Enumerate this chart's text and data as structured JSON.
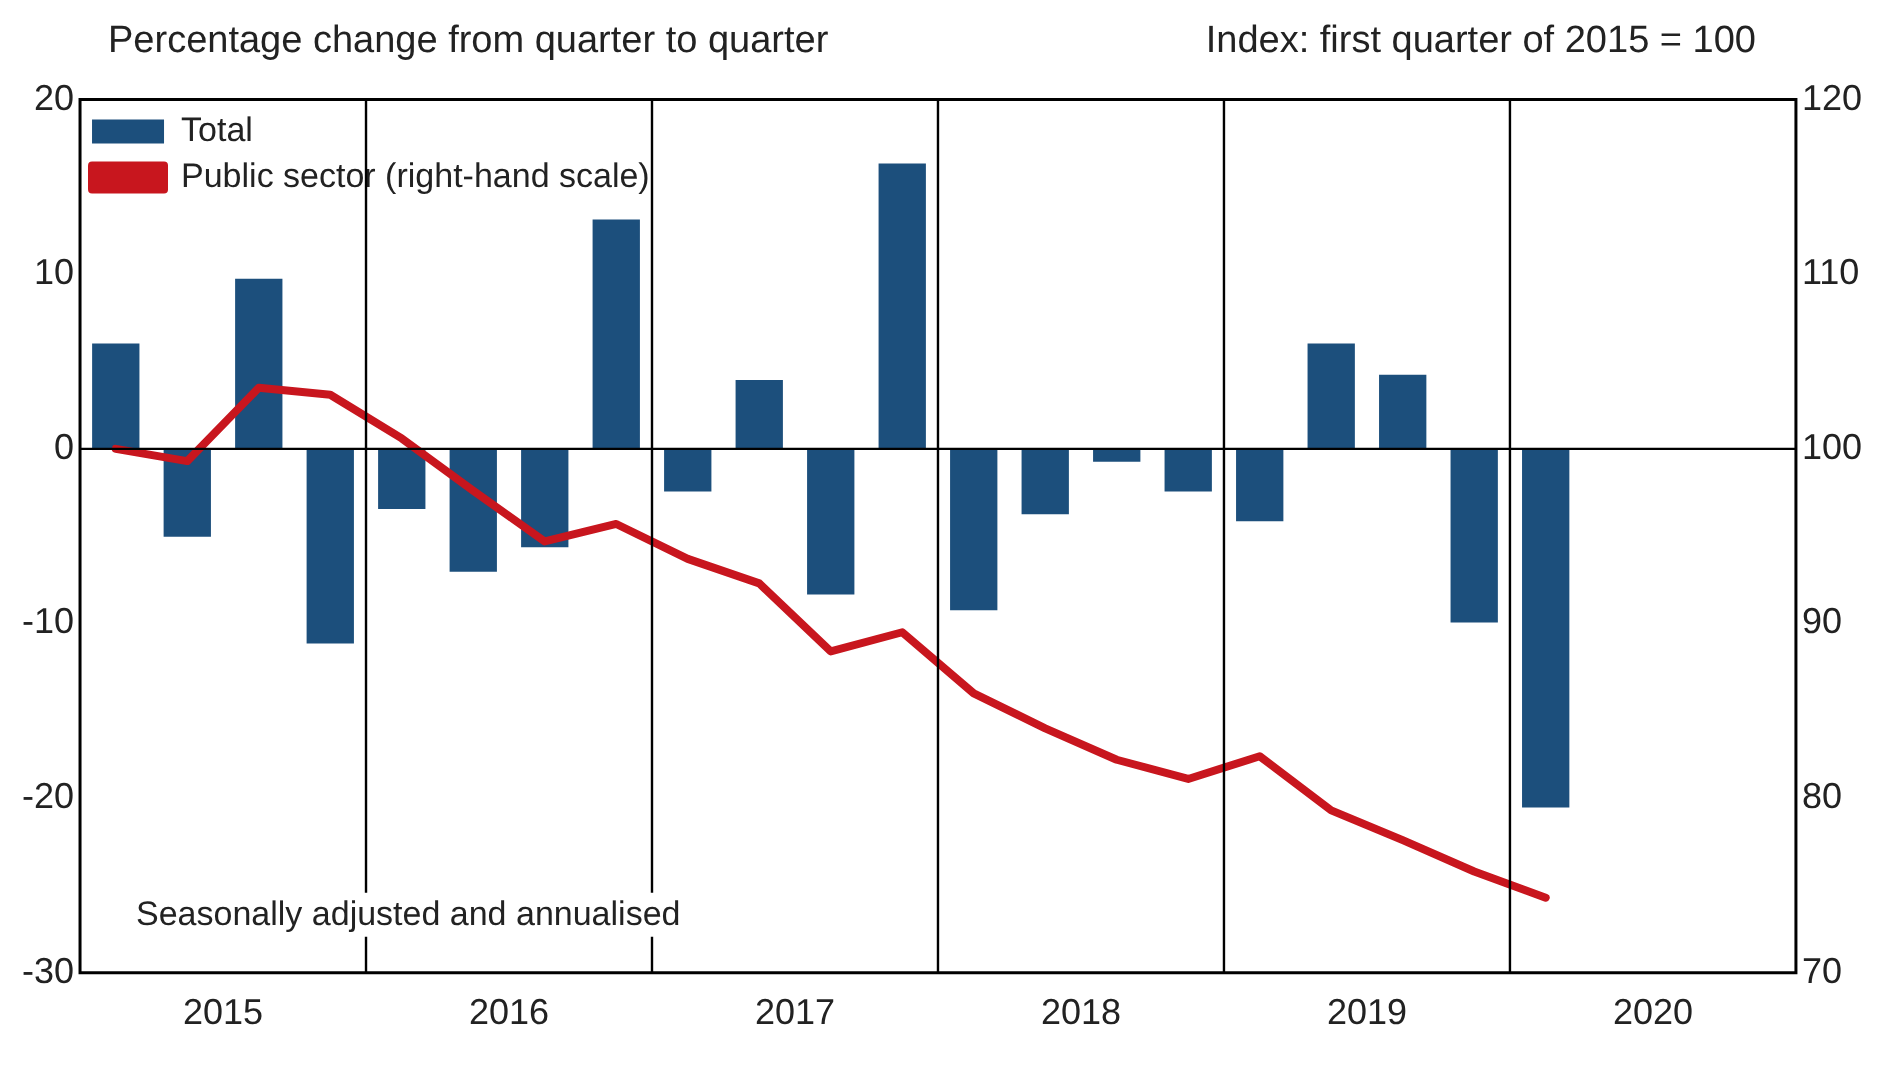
{
  "chart_data": {
    "type": "bar",
    "ylabel": "Percentage change from quarter to quarter",
    "y2label": "Index: first quarter of 2015 = 100",
    "x": [
      2015.125,
      2015.375,
      2015.625,
      2015.875,
      2016.125,
      2016.375,
      2016.625,
      2016.875,
      2017.125,
      2017.375,
      2017.625,
      2017.875,
      2018.125,
      2018.375,
      2018.625,
      2018.875,
      2019.125,
      2019.375,
      2019.625,
      2019.875,
      2020.125
    ],
    "series": [
      {
        "name": "Total",
        "color": "#1c4f7c",
        "values": [
          6,
          -5,
          9.7,
          -11.1,
          -3.4,
          -7,
          -5.6,
          13.1,
          -2.4,
          3.9,
          -8.3,
          16.3,
          -9.2,
          -3.7,
          -0.7,
          -2.4,
          -4.1,
          6,
          4.2,
          -9.9,
          -20.5
        ]
      },
      {
        "name": "Public sector (right-hand scale)",
        "type": "line",
        "axis": "y2",
        "color": "#c8161e",
        "values": [
          100,
          99.3,
          103.5,
          103.1,
          100.6,
          97.6,
          94.7,
          95.7,
          93.7,
          92.3,
          88.4,
          89.5,
          86,
          84,
          82.2,
          81.1,
          82.4,
          79.3,
          77.6,
          75.8,
          74.3
        ]
      }
    ],
    "xlim": [
      2015,
      2021
    ],
    "xticks": [
      {
        "value": 2015.5,
        "label": "2015"
      },
      {
        "value": 2016.5,
        "label": "2016"
      },
      {
        "value": 2017.5,
        "label": "2017"
      },
      {
        "value": 2018.5,
        "label": "2018"
      },
      {
        "value": 2019.5,
        "label": "2019"
      },
      {
        "value": 2020.5,
        "label": "2020"
      }
    ],
    "ylim": [
      -30,
      20
    ],
    "yticks": [
      -30,
      -20,
      -10,
      0,
      10,
      20
    ],
    "y2lim": [
      70,
      120
    ],
    "y2ticks": [
      70,
      80,
      90,
      100,
      110,
      120
    ],
    "ref_lines": [
      {
        "axis": "y",
        "value": 0,
        "color": "#000000"
      },
      {
        "axis": "x",
        "value": 2016,
        "color": "#000000"
      },
      {
        "axis": "x",
        "value": 2017,
        "color": "#000000"
      },
      {
        "axis": "x",
        "value": 2018,
        "color": "#000000"
      },
      {
        "axis": "x",
        "value": 2019,
        "color": "#000000"
      },
      {
        "axis": "x",
        "value": 2020,
        "color": "#000000"
      }
    ],
    "annotations": [
      "Seasonally adjusted and annualised"
    ],
    "legend": "top left",
    "grid": false,
    "marker": "none",
    "line_style": "solid"
  }
}
